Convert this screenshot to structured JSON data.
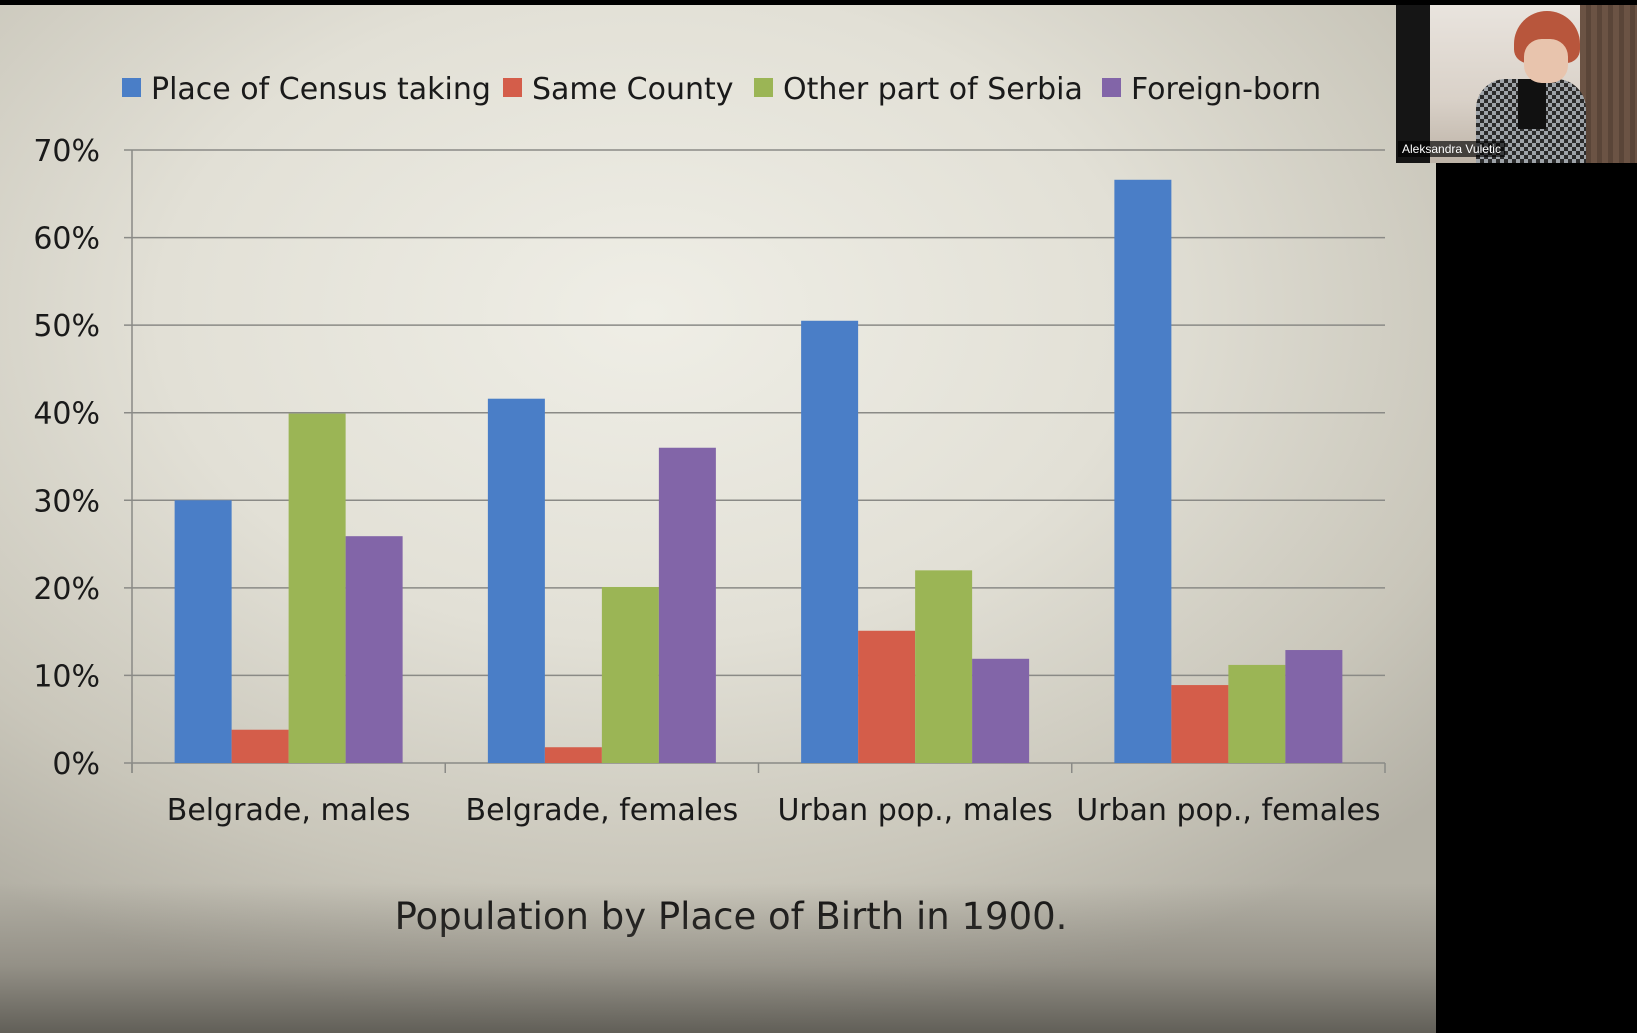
{
  "chart_data": {
    "type": "bar",
    "title": "Population by Place of Birth in 1900.",
    "categories": [
      "Belgrade, males",
      "Belgrade, females",
      "Urban pop., males",
      "Urban pop., females"
    ],
    "series": [
      {
        "name": "Place of Census taking",
        "color": "#4a7ec7",
        "values": [
          30,
          41.6,
          50.5,
          66.6
        ]
      },
      {
        "name": "Same County",
        "color": "#d45d4a",
        "values": [
          3.8,
          1.8,
          15.1,
          8.9
        ]
      },
      {
        "name": "Other part of Serbia",
        "color": "#9bb555",
        "values": [
          39.9,
          20.1,
          22.0,
          11.2
        ]
      },
      {
        "name": "Foreign-born",
        "color": "#8265a8",
        "values": [
          25.9,
          36.0,
          11.9,
          12.9
        ]
      }
    ],
    "y_ticks": [
      "0%",
      "10%",
      "20%",
      "30%",
      "40%",
      "50%",
      "60%",
      "70%"
    ],
    "ylim": [
      0,
      70
    ],
    "xlabel": "",
    "ylabel": "",
    "grid": true,
    "legend_position": "top"
  },
  "video": {
    "participant_name": "Aleksandra Vuletic"
  }
}
